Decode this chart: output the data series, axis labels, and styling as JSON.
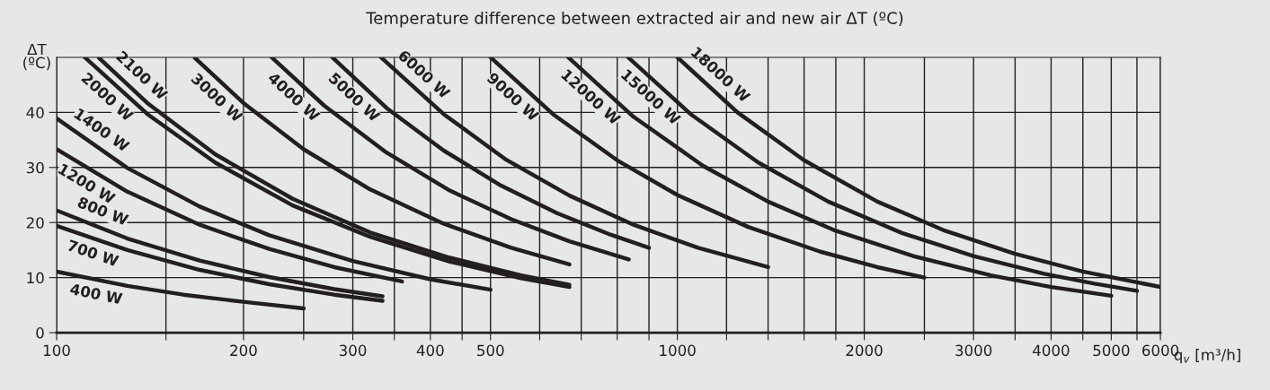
{
  "chart_data": {
    "type": "line",
    "title": "Temperature difference between extracted air and new air ΔT (ºC)",
    "xlabel": "q$_{v}$ [m³/h]",
    "ylabel": "ΔT\n(ºC)",
    "log": "x",
    "grid": true,
    "marker": "none",
    "line_style": "solid",
    "xlim": [
      100,
      6000
    ],
    "ylim": [
      0,
      50
    ],
    "xticks": [
      100,
      {
        "value": 150,
        "label": null
      },
      200,
      {
        "value": 250,
        "label": null
      },
      300,
      {
        "value": 350,
        "label": null
      },
      400,
      {
        "value": 450,
        "label": null
      },
      500,
      {
        "value": 600,
        "label": null
      },
      {
        "value": 700,
        "label": null
      },
      {
        "value": 800,
        "label": null
      },
      {
        "value": 900,
        "label": null
      },
      1000,
      {
        "value": 1200,
        "label": null
      },
      {
        "value": 1400,
        "label": null
      },
      {
        "value": 1600,
        "label": null
      },
      {
        "value": 1800,
        "label": null
      },
      2000,
      {
        "value": 2500,
        "label": null
      },
      3000,
      {
        "value": 3500,
        "label": null
      },
      4000,
      {
        "value": 4500,
        "label": null
      },
      5000,
      {
        "value": 5500,
        "label": null
      },
      6000
    ],
    "yticks": [
      0,
      10,
      20,
      30,
      40
    ],
    "series": [
      {
        "name": "400 W",
        "color": "#231f20",
        "x": [
          100,
          130,
          160,
          200,
          250
        ],
        "values": [
          11.1,
          8.5,
          6.9,
          5.6,
          4.4
        ]
      },
      {
        "name": "700 W",
        "color": "#231f20",
        "x": [
          100,
          130,
          170,
          220,
          280,
          335
        ],
        "values": [
          19.4,
          15.0,
          11.4,
          8.8,
          6.9,
          5.8
        ]
      },
      {
        "name": "800 W",
        "color": "#231f20",
        "x": [
          100,
          130,
          170,
          220,
          280,
          335
        ],
        "values": [
          22.2,
          17.1,
          13.1,
          10.1,
          7.9,
          6.6
        ]
      },
      {
        "name": "1200 W",
        "color": "#231f20",
        "x": [
          100,
          130,
          170,
          220,
          280,
          360
        ],
        "values": [
          33.3,
          25.6,
          19.6,
          15.2,
          11.9,
          9.3
        ]
      },
      {
        "name": "1400 W",
        "color": "#231f20",
        "x": [
          100,
          130,
          170,
          220,
          300,
          400,
          500
        ],
        "values": [
          38.9,
          29.9,
          22.9,
          17.7,
          13.0,
          9.7,
          7.8
        ]
      },
      {
        "name": "2000 W",
        "color": "#231f20",
        "x": [
          111,
          140,
          180,
          240,
          320,
          430,
          560,
          670
        ],
        "values": [
          50.0,
          39.7,
          30.9,
          23.1,
          17.4,
          12.9,
          9.9,
          8.3
        ]
      },
      {
        "name": "2100 W",
        "color": "#231f20",
        "x": [
          117,
          140,
          180,
          240,
          320,
          430,
          560,
          670
        ],
        "values": [
          49.9,
          41.7,
          32.4,
          24.3,
          18.2,
          13.6,
          10.4,
          8.7
        ]
      },
      {
        "name": "3000 W",
        "color": "#231f20",
        "x": [
          167,
          200,
          250,
          320,
          420,
          540,
          670
        ],
        "values": [
          49.9,
          41.7,
          33.3,
          26.0,
          19.8,
          15.4,
          12.4
        ]
      },
      {
        "name": "4000 W",
        "color": "#231f20",
        "x": [
          222,
          270,
          340,
          430,
          540,
          670,
          835
        ],
        "values": [
          50.0,
          41.2,
          32.7,
          25.8,
          20.6,
          16.6,
          13.3
        ]
      },
      {
        "name": "5000 W",
        "color": "#231f20",
        "x": [
          278,
          340,
          420,
          520,
          640,
          780,
          900
        ],
        "values": [
          50.0,
          40.8,
          33.1,
          26.7,
          21.7,
          17.8,
          15.4
        ]
      },
      {
        "name": "6000 W",
        "color": "#231f20",
        "x": [
          333,
          420,
          530,
          670,
          850,
          1080,
          1400
        ],
        "values": [
          50.0,
          39.7,
          31.4,
          24.9,
          19.6,
          15.4,
          11.9
        ]
      },
      {
        "name": "9000 W",
        "color": "#231f20",
        "x": [
          500,
          630,
          800,
          1000,
          1300,
          1700,
          2100,
          2500
        ],
        "values": [
          50.0,
          39.7,
          31.3,
          25.0,
          19.2,
          14.7,
          11.9,
          10.0
        ]
      },
      {
        "name": "12000 W",
        "color": "#231f20",
        "x": [
          667,
          850,
          1100,
          1400,
          1800,
          2400,
          3200,
          4000,
          5000
        ],
        "values": [
          50.0,
          39.2,
          30.3,
          23.8,
          18.5,
          13.9,
          10.4,
          8.3,
          6.7
        ]
      },
      {
        "name": "15000 W",
        "color": "#231f20",
        "x": [
          833,
          1050,
          1350,
          1750,
          2300,
          3000,
          3900,
          4700,
          5500
        ],
        "values": [
          50.0,
          39.7,
          30.9,
          23.8,
          18.1,
          13.9,
          10.7,
          8.9,
          7.6
        ]
      },
      {
        "name": "18000 W",
        "color": "#231f20",
        "x": [
          1000,
          1250,
          1600,
          2100,
          2700,
          3500,
          4500,
          6000
        ],
        "values": [
          50.0,
          40.0,
          31.3,
          23.8,
          18.5,
          14.3,
          11.1,
          8.3
        ]
      }
    ]
  }
}
